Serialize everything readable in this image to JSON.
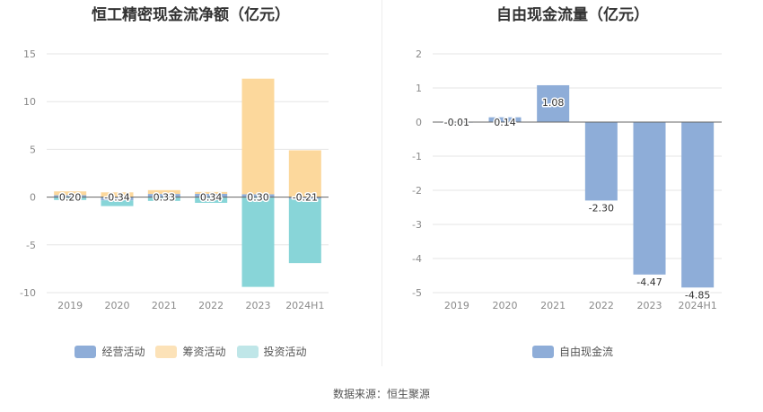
{
  "footer": {
    "source": "数据来源：恒生聚源"
  },
  "colors": {
    "operating": "#8eadd8",
    "financing": "#fcd89c",
    "investing": "#88d5d8",
    "fcf": "#8eadd8"
  },
  "chart_data": [
    {
      "type": "bar",
      "title": "恒工精密现金流净额（亿元）",
      "categories": [
        "2019",
        "2020",
        "2021",
        "2022",
        "2023",
        "2024H1"
      ],
      "ylim": [
        -10,
        15
      ],
      "yticks": [
        "15",
        "10",
        "5",
        "0",
        "-5",
        "-10"
      ],
      "series": [
        {
          "name": "经营活动",
          "values": [
            0.2,
            -0.34,
            0.33,
            0.34,
            0.3,
            -0.21
          ],
          "color": "#8eadd8"
        },
        {
          "name": "筹资活动",
          "values": [
            0.4,
            0.5,
            0.4,
            0.2,
            12.1,
            4.9
          ],
          "color": "#fcd89c"
        },
        {
          "name": "投资活动",
          "values": [
            -0.3,
            -0.6,
            -0.4,
            -0.6,
            -9.4,
            -6.7
          ],
          "color": "#88d5d8"
        }
      ],
      "data_labels": [
        "0.20",
        "-0.34",
        "0.33",
        "0.34",
        "0.30",
        "-0.21"
      ],
      "grid": true,
      "legend": "bottom"
    },
    {
      "type": "bar",
      "title": "自由现金流量（亿元）",
      "categories": [
        "2019",
        "2020",
        "2021",
        "2022",
        "2023",
        "2024H1"
      ],
      "ylim": [
        -5,
        2
      ],
      "yticks": [
        "2",
        "1",
        "0",
        "-1",
        "-2",
        "-3",
        "-4",
        "-5"
      ],
      "series": [
        {
          "name": "自由现金流",
          "values": [
            -0.01,
            0.14,
            1.08,
            -2.3,
            -4.47,
            -4.85
          ],
          "color": "#8eadd8"
        }
      ],
      "data_labels": [
        "-0.01",
        "0.14",
        "1.08",
        "-2.30",
        "-4.47",
        "-4.85"
      ],
      "grid": true,
      "legend": "bottom"
    }
  ]
}
